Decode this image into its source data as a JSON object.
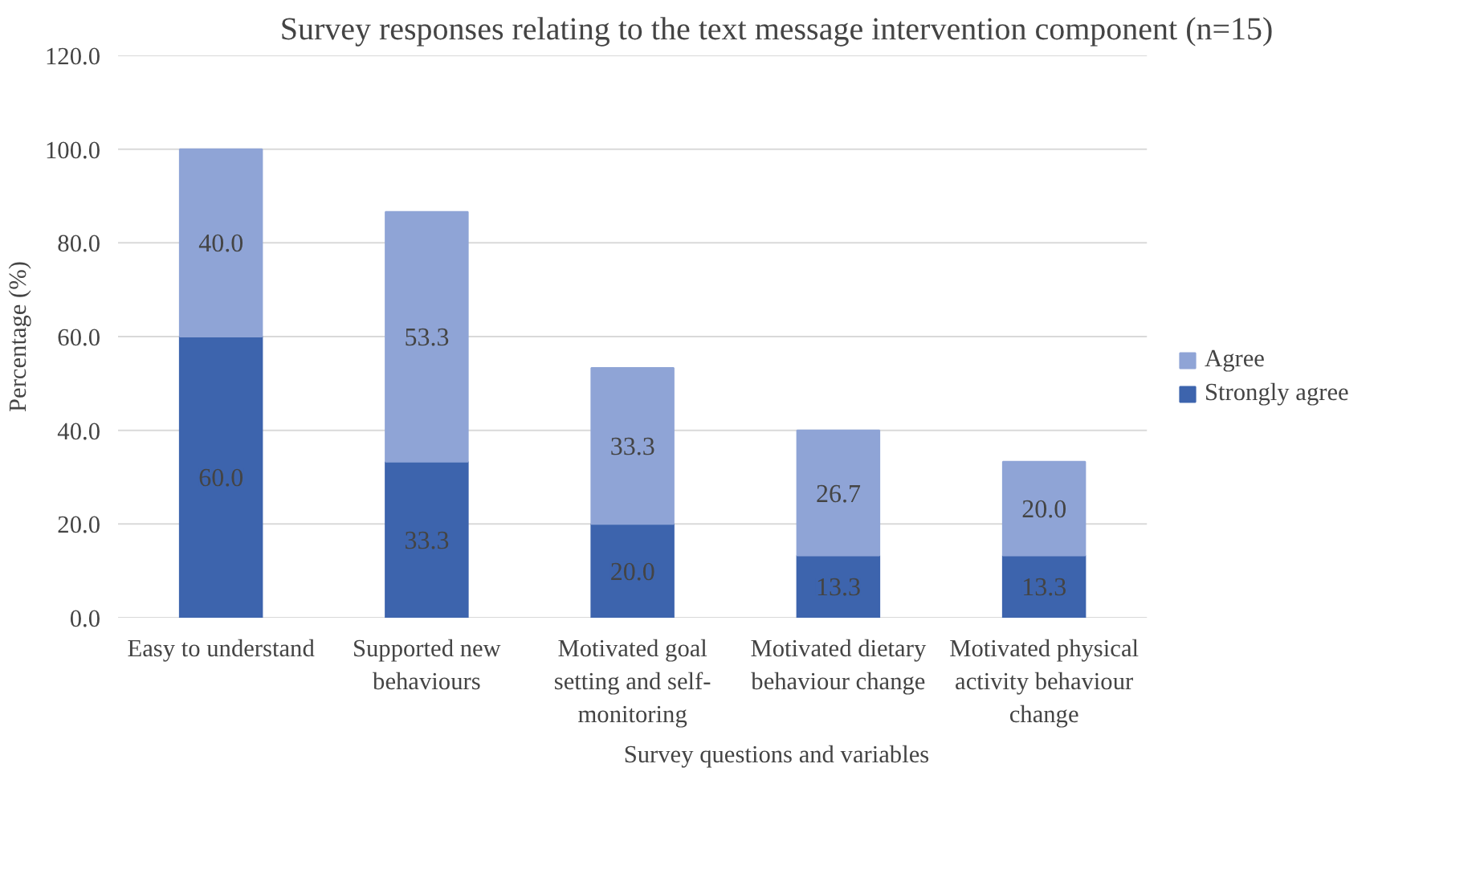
{
  "chart_data": {
    "type": "bar",
    "title": "Survey responses relating to the text message intervention component (n=15)",
    "xlabel": "Survey questions and variables",
    "ylabel": "Percentage (%)",
    "categories": [
      "Easy to understand",
      "Supported new behaviours",
      "Motivated goal setting and self-monitoring",
      "Motivated dietary behaviour change",
      "Motivated physical activity behaviour change"
    ],
    "stacked": true,
    "series": [
      {
        "name": "Strongly agree",
        "color": "#3d64ad",
        "values": [
          60.0,
          33.3,
          20.0,
          13.3,
          13.3
        ],
        "value_labels": [
          "60.0",
          "33.3",
          "20.0",
          "13.3",
          "13.3"
        ]
      },
      {
        "name": "Agree",
        "color": "#8fa4d6",
        "values": [
          40.0,
          53.3,
          33.3,
          26.7,
          20.0
        ],
        "value_labels": [
          "40.0",
          "53.3",
          "33.3",
          "26.7",
          "20.0"
        ]
      }
    ],
    "ylim": [
      0,
      120
    ],
    "yticks": [
      {
        "value": 0,
        "label": "0.0"
      },
      {
        "value": 20,
        "label": "20.0"
      },
      {
        "value": 40,
        "label": "40.0"
      },
      {
        "value": 60,
        "label": "60.0"
      },
      {
        "value": 80,
        "label": "80.0"
      },
      {
        "value": 100,
        "label": "100.0"
      },
      {
        "value": 120,
        "label": "120.0"
      }
    ],
    "grid": "y",
    "legend": "right"
  }
}
